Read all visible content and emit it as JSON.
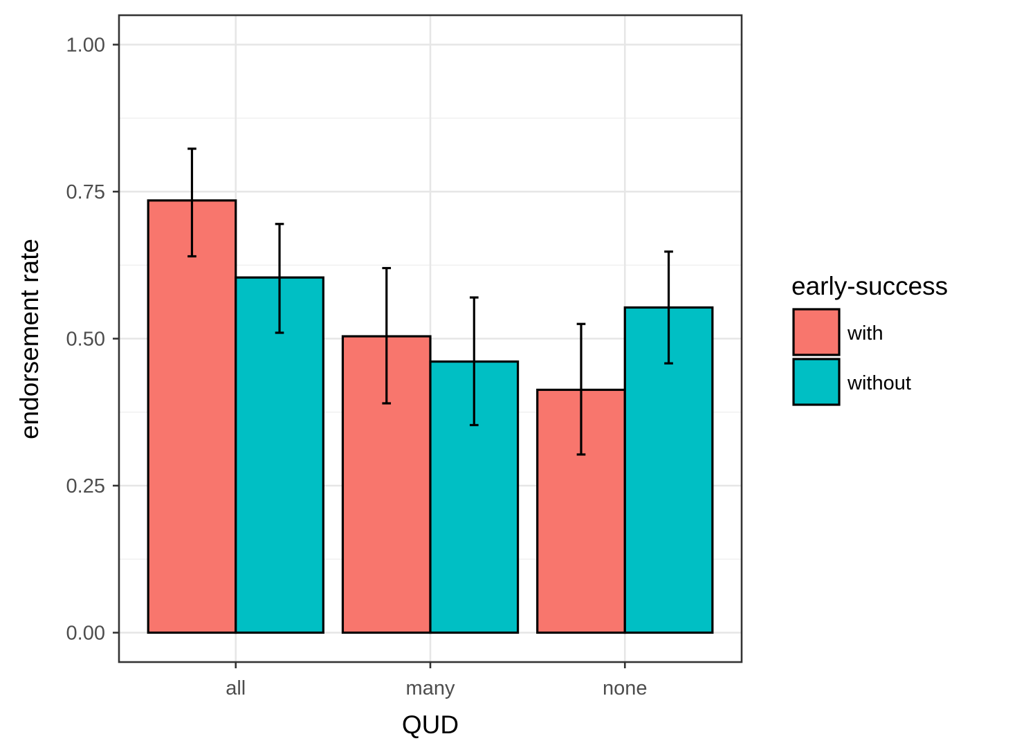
{
  "chart_data": {
    "type": "bar",
    "xlabel": "QUD",
    "ylabel": "endorsement rate",
    "categories": [
      "all",
      "many",
      "none"
    ],
    "ylim": [
      -0.05,
      1.05
    ],
    "yticks": [
      0.0,
      0.25,
      0.5,
      0.75,
      1.0
    ],
    "ytick_labels": [
      "0.00",
      "0.25",
      "0.50",
      "0.75",
      "1.00"
    ],
    "grid": true,
    "legend": {
      "title": "early-success",
      "position": "right"
    },
    "series": [
      {
        "name": "with",
        "color": "#F8766D",
        "values": [
          0.735,
          0.504,
          0.413
        ],
        "error_low": [
          0.64,
          0.39,
          0.303
        ],
        "error_high": [
          0.823,
          0.62,
          0.525
        ]
      },
      {
        "name": "without",
        "color": "#00BFC4",
        "values": [
          0.604,
          0.461,
          0.553
        ],
        "error_low": [
          0.51,
          0.353,
          0.458
        ],
        "error_high": [
          0.695,
          0.57,
          0.648
        ]
      }
    ]
  }
}
